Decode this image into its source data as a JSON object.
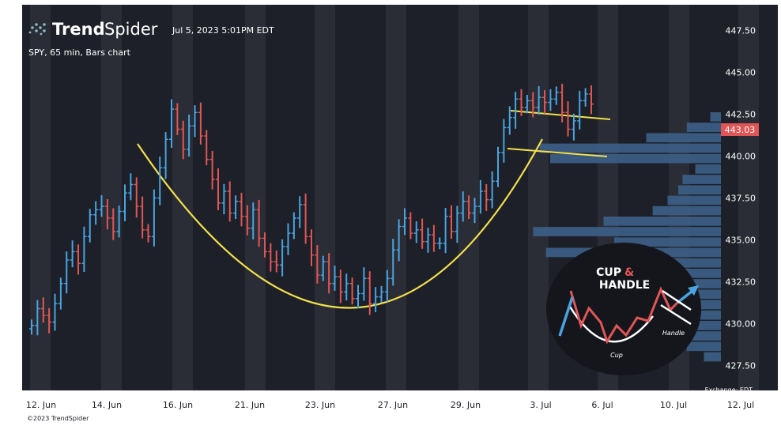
{
  "brand": {
    "name_bold": "Trend",
    "name_light": "Spider",
    "timestamp": "Jul 5, 2023 5:01PM EDT"
  },
  "chart_meta": {
    "symbol_line": "SPY, 65 min, Bars chart",
    "exchange": "Exchange: EDT",
    "copyright": "©2023 TrendSpider"
  },
  "last_price": {
    "label": "443.03",
    "value": 443.03,
    "color": "#e05656"
  },
  "colors": {
    "background": "#1d2028",
    "up": "#4aa3e0",
    "down": "#e05656",
    "pattern_lines": "#f4e04d",
    "volume_profile": "#3d5f87"
  },
  "inset": {
    "title_1": "CUP",
    "title_amp": "&",
    "title_2": "HANDLE",
    "cup_label": "Cup",
    "handle_label": "Handle"
  },
  "chart_data": {
    "type": "bar",
    "title": "SPY, 65 min, Bars chart",
    "y_axis": {
      "ticks": [
        "447.50",
        "445.00",
        "442.50",
        "440.00",
        "437.50",
        "435.00",
        "432.50",
        "430.00",
        "427.50"
      ],
      "range": [
        426.0,
        449.0
      ]
    },
    "x_axis": {
      "ticks": [
        "12. Jun",
        "14. Jun",
        "16. Jun",
        "21. Jun",
        "23. Jun",
        "27. Jun",
        "29. Jun",
        "3. Jul",
        "6. Jul",
        "10. Jul",
        "12. Jul"
      ]
    },
    "series": [
      {
        "closes": [
          429.9,
          430.9,
          430.5,
          430.1,
          431.2,
          432.4,
          433.8,
          434.3,
          433.6,
          435.2,
          436.5,
          436.8,
          437.0,
          436.3,
          435.5,
          436.7,
          437.8,
          438.3,
          437.0,
          435.6,
          435.2,
          437.5,
          439.3,
          441.0,
          442.8,
          441.6,
          440.4,
          441.8,
          442.6,
          441.2,
          439.8,
          438.6,
          437.2,
          437.9,
          436.6,
          437.3,
          436.4,
          435.7,
          436.8,
          435.1,
          434.3,
          433.7,
          433.5,
          434.6,
          435.4,
          436.3,
          437.1,
          435.2,
          434.1,
          432.9,
          433.7,
          432.4,
          432.8,
          431.9,
          432.4,
          431.5,
          431.8,
          432.7,
          431.2,
          431.6,
          431.9,
          432.7,
          434.4,
          435.8,
          436.3,
          435.4,
          435.6,
          434.9,
          435.3,
          434.8,
          434.8,
          436.4,
          435.5,
          436.6,
          437.3,
          436.6,
          437.0,
          437.9,
          437.4,
          438.5,
          440.2,
          441.7,
          442.3,
          443.4,
          442.9,
          443.3,
          442.9,
          443.5,
          443.2,
          443.4,
          443.8,
          442.6,
          441.6,
          442.1,
          443.3,
          443.7,
          443.1
        ]
      }
    ],
    "volume_profile_top_to_bottom": [
      0.05,
      0.16,
      0.35,
      0.85,
      0.8,
      0.12,
      0.18,
      0.2,
      0.25,
      0.32,
      0.55,
      0.88,
      0.5,
      0.82,
      0.48,
      0.4,
      0.36,
      0.44,
      0.3,
      0.34,
      0.24,
      0.2,
      0.16,
      0.08
    ],
    "pattern_overlays": [
      {
        "name": "cup",
        "type": "curve",
        "points": [
          [
            "14. Jun",
            441.6
          ],
          [
            "27. Jun",
            430.2
          ],
          [
            "3. Jul",
            441.8
          ]
        ]
      },
      {
        "name": "handle-upper",
        "type": "line",
        "points": [
          [
            "3. Jul",
            444.2
          ],
          [
            "6. Jul",
            443.6
          ]
        ]
      },
      {
        "name": "handle-lower",
        "type": "line",
        "points": [
          [
            "3. Jul",
            441.6
          ],
          [
            "6. Jul",
            440.9
          ]
        ]
      }
    ]
  }
}
